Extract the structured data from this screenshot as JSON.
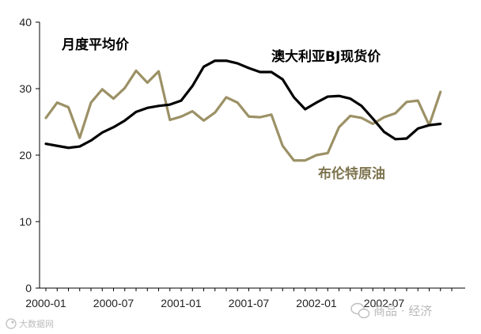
{
  "chart_data": {
    "type": "line",
    "x": [
      "2000-01",
      "2000-02",
      "2000-03",
      "2000-04",
      "2000-05",
      "2000-06",
      "2000-07",
      "2000-08",
      "2000-09",
      "2000-10",
      "2000-11",
      "2000-12",
      "2001-01",
      "2001-02",
      "2001-03",
      "2001-04",
      "2001-05",
      "2001-06",
      "2001-07",
      "2001-08",
      "2001-09",
      "2001-10",
      "2001-11",
      "2001-12",
      "2002-01",
      "2002-02",
      "2002-03",
      "2002-04",
      "2002-05",
      "2002-06",
      "2002-07",
      "2002-08",
      "2002-09",
      "2002-10",
      "2002-11",
      "2002-12",
      "2003-01"
    ],
    "x_tick_labels": [
      "2000-01",
      "2000-07",
      "2001-01",
      "2001-07",
      "2002-01",
      "2002-07"
    ],
    "y_ticks": [
      0,
      10,
      20,
      30,
      40
    ],
    "ylim": [
      0,
      40
    ],
    "grid": false,
    "series": [
      {
        "name": "澳大利亚BJ现货价",
        "color": "#000000",
        "values": [
          21.7,
          21.4,
          21.1,
          21.3,
          22.2,
          23.4,
          24.2,
          25.2,
          26.5,
          27.1,
          27.4,
          27.6,
          28.2,
          30.4,
          33.3,
          34.2,
          34.2,
          33.8,
          33.1,
          32.5,
          32.5,
          31.4,
          28.7,
          26.9,
          27.9,
          28.8,
          28.9,
          28.5,
          27.4,
          25.5,
          23.5,
          22.4,
          22.5,
          24.0,
          24.5,
          24.7,
          null
        ]
      },
      {
        "name": "布伦特原油",
        "color": "#9c9166",
        "values": [
          25.6,
          27.9,
          27.2,
          22.6,
          27.9,
          29.9,
          28.5,
          30.1,
          32.7,
          30.9,
          32.6,
          25.3,
          25.8,
          26.6,
          25.2,
          26.4,
          28.7,
          27.9,
          25.8,
          25.7,
          26.1,
          21.4,
          19.2,
          19.2,
          20.0,
          20.3,
          24.2,
          25.9,
          25.6,
          24.7,
          25.7,
          26.3,
          28.0,
          28.2,
          24.5,
          29.5,
          null
        ]
      }
    ]
  },
  "series_labels": {
    "monthly_avg": "月度平均价",
    "australia_bj": "澳大利亚BJ现货价",
    "brent": "布伦特原油"
  },
  "watermarks": {
    "bottom_left": "大数据网",
    "bottom_right": "商品 · 经济"
  }
}
